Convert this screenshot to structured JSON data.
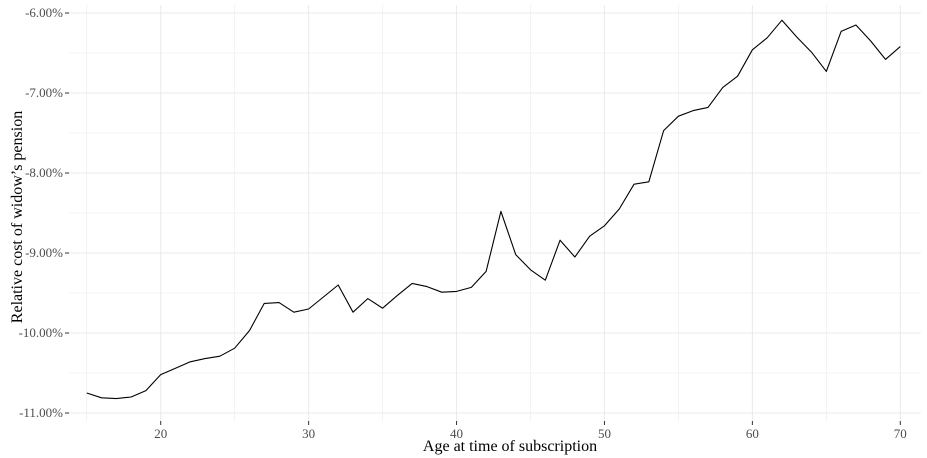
{
  "chart_data": {
    "type": "line",
    "title": "",
    "xlabel": "Age at time of subscription",
    "ylabel": "Relative cost of widow’s pension",
    "x_ticks": [
      20,
      30,
      40,
      50,
      60,
      70
    ],
    "y_ticks": [
      -6.0,
      -7.0,
      -8.0,
      -9.0,
      -10.0,
      -11.0
    ],
    "y_tick_labels": [
      "-6.00%",
      "-7.00%",
      "-8.00%",
      "-9.00%",
      "-10.00%",
      "-11.00%"
    ],
    "xlim": [
      13.8,
      71.4
    ],
    "ylim": [
      -11.1,
      -5.9
    ],
    "grid": true,
    "line_color": "#000000",
    "grid_color": "#ebebeb",
    "series": [
      {
        "x": [
          15,
          16,
          17,
          18,
          19,
          20,
          21,
          22,
          23,
          24,
          25,
          26,
          27,
          28,
          29,
          30,
          31,
          32,
          33,
          34,
          35,
          36,
          37,
          38,
          39,
          40,
          41,
          42,
          43,
          44,
          45,
          46,
          47,
          48,
          49,
          50,
          51,
          52,
          53,
          54,
          55,
          56,
          57,
          58,
          59,
          60,
          61,
          62,
          63,
          64,
          65,
          66,
          67,
          68,
          69,
          70
        ],
        "values": [
          -10.75,
          -10.81,
          -10.82,
          -10.8,
          -10.72,
          -10.52,
          -10.44,
          -10.36,
          -10.32,
          -10.29,
          -10.19,
          -9.97,
          -9.63,
          -9.62,
          -9.74,
          -9.7,
          -9.55,
          -9.4,
          -9.74,
          -9.57,
          -9.69,
          -9.53,
          -9.38,
          -9.42,
          -9.49,
          -9.48,
          -9.43,
          -9.23,
          -8.48,
          -9.02,
          -9.21,
          -9.34,
          -8.84,
          -9.05,
          -8.79,
          -8.66,
          -8.45,
          -8.14,
          -8.11,
          -7.47,
          -7.29,
          -7.22,
          -7.18,
          -6.93,
          -6.79,
          -6.46,
          -6.31,
          -6.09,
          -6.3,
          -6.49,
          -6.73,
          -6.23,
          -6.15,
          -6.35,
          -6.58,
          -6.42
        ]
      }
    ]
  }
}
